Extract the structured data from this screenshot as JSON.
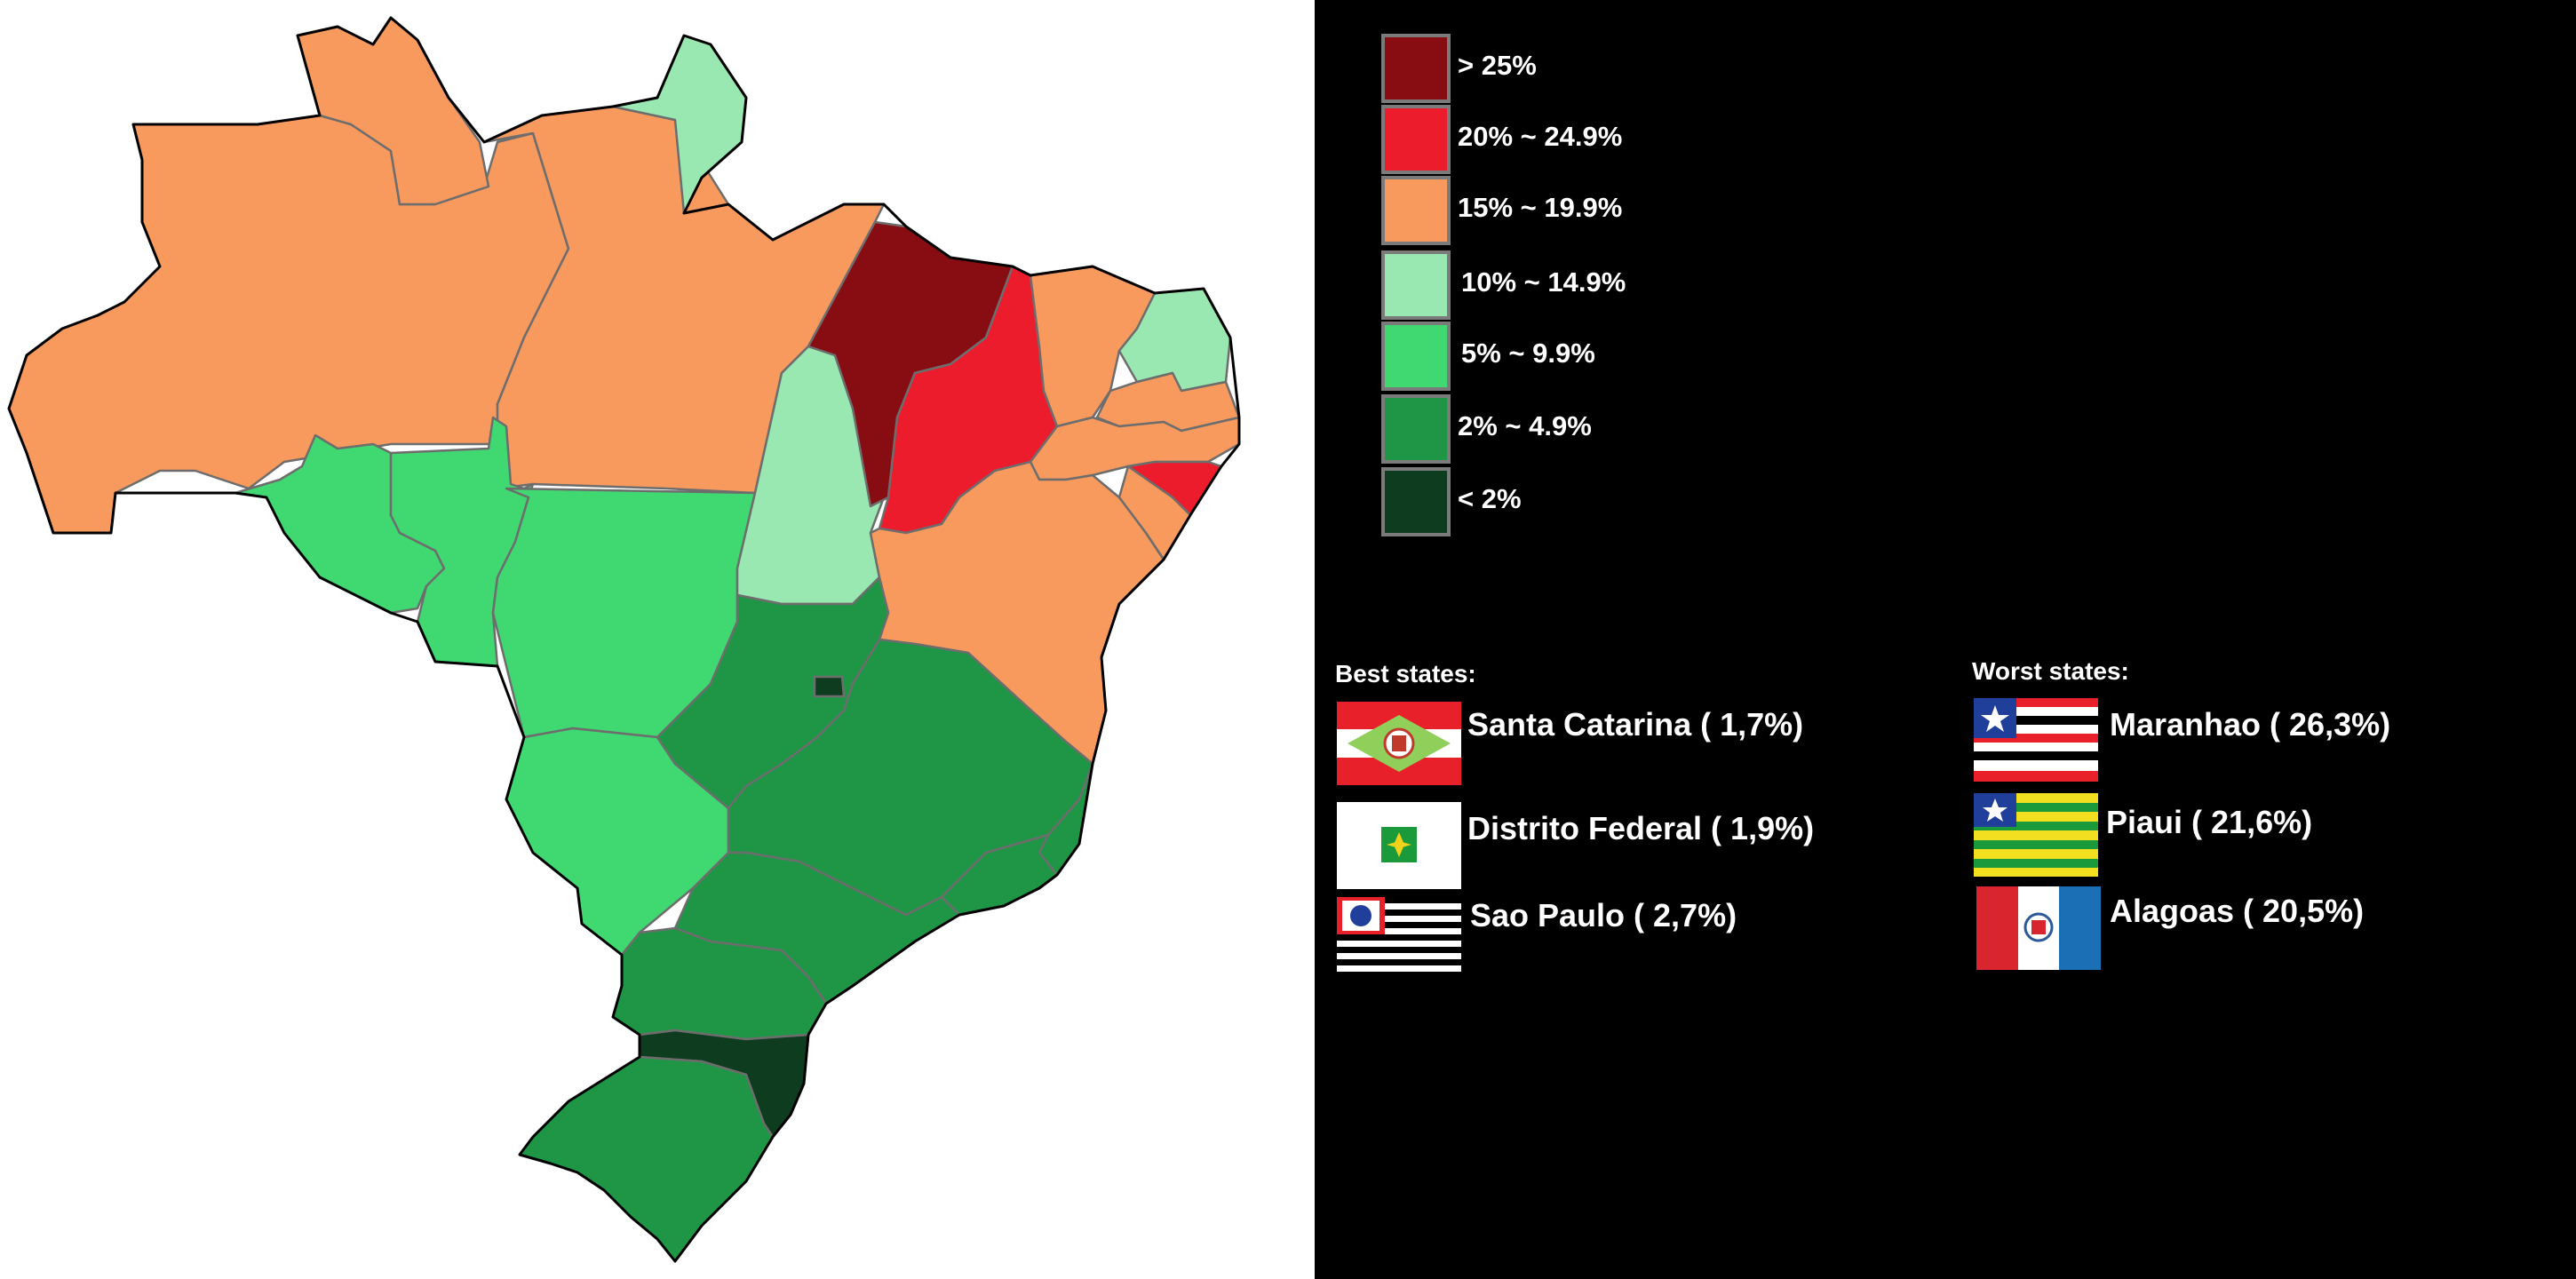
{
  "legend": {
    "items": [
      {
        "label": "> 25%",
        "color": "#870d12"
      },
      {
        "label": "20% ~ 24.9%",
        "color": "#ec1c2c"
      },
      {
        "label": "15% ~ 19.9%",
        "color": "#f89a5d"
      },
      {
        "label": "10% ~ 14.9%",
        "color": "#9ae8b1"
      },
      {
        "label": "5% ~ 9.9%",
        "color": "#40d870"
      },
      {
        "label": "2% ~ 4.9%",
        "color": "#1e9645"
      },
      {
        "label": "< 2%",
        "color": "#0e3c1e"
      }
    ]
  },
  "best": {
    "title": "Best states:",
    "entries": [
      {
        "label": "Santa Catarina ( 1,7%)",
        "flag": "santa-catarina-flag"
      },
      {
        "label": "Distrito Federal ( 1,9%)",
        "flag": "distrito-federal-flag"
      },
      {
        "label": "Sao Paulo ( 2,7%)",
        "flag": "sao-paulo-flag"
      }
    ]
  },
  "worst": {
    "title": "Worst states:",
    "entries": [
      {
        "label": "Maranhao ( 26,3%)",
        "flag": "maranhao-flag"
      },
      {
        "label": "Piaui ( 21,6%)",
        "flag": "piaui-flag"
      },
      {
        "label": "Alagoas ( 20,5%)",
        "flag": "alagoas-flag"
      }
    ]
  }
}
